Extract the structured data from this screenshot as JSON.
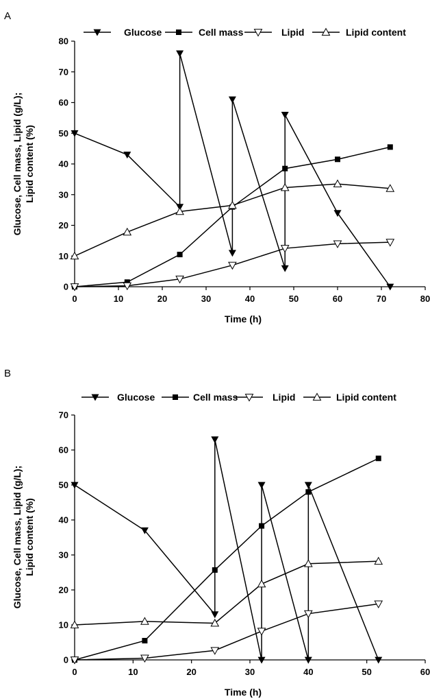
{
  "chart_data": [
    {
      "panel": "A",
      "type": "line",
      "xlabel": "Time (h)",
      "ylabel": [
        "Glucose, Cell mass, Lipid (g/L);",
        "Lipid content (%)"
      ],
      "xlim": [
        0,
        80
      ],
      "ylim": [
        0,
        80
      ],
      "xticks": [
        0,
        10,
        20,
        30,
        40,
        50,
        60,
        70,
        80
      ],
      "yticks": [
        0,
        10,
        20,
        30,
        40,
        50,
        60,
        70,
        80
      ],
      "grid": false,
      "legend_position": "top",
      "series": [
        {
          "name": "Glucose",
          "marker": "triangle-down-filled",
          "points": [
            [
              0,
              50
            ],
            [
              12,
              43
            ],
            [
              24,
              26
            ],
            [
              24,
              76
            ],
            [
              36,
              11
            ],
            [
              36,
              61
            ],
            [
              48,
              6
            ],
            [
              48,
              56
            ],
            [
              60,
              24
            ],
            [
              72,
              0
            ]
          ]
        },
        {
          "name": "Cell mass",
          "marker": "square-filled",
          "points": [
            [
              0,
              0
            ],
            [
              12,
              1.5
            ],
            [
              24,
              10.5
            ],
            [
              36,
              26
            ],
            [
              48,
              38.5
            ],
            [
              60,
              41.5
            ],
            [
              72,
              45.5
            ]
          ]
        },
        {
          "name": "Lipid",
          "marker": "triangle-down-open",
          "points": [
            [
              0,
              0
            ],
            [
              12,
              0.3
            ],
            [
              24,
              2.5
            ],
            [
              36,
              7
            ],
            [
              48,
              12.5
            ],
            [
              60,
              14
            ],
            [
              72,
              14.5
            ]
          ]
        },
        {
          "name": "Lipid content",
          "marker": "triangle-up-open",
          "points": [
            [
              0,
              10
            ],
            [
              12,
              17.8
            ],
            [
              24,
              24.5
            ],
            [
              36,
              26.5
            ],
            [
              48,
              32.3
            ],
            [
              60,
              33.5
            ],
            [
              72,
              32
            ]
          ]
        }
      ]
    },
    {
      "panel": "B",
      "type": "line",
      "xlabel": "Time (h)",
      "ylabel": [
        "Glucose, Cell mass, Lipid (g/L);",
        "Lipid content (%)"
      ],
      "xlim": [
        0,
        60
      ],
      "ylim": [
        0,
        70
      ],
      "xticks": [
        0,
        10,
        20,
        30,
        40,
        50,
        60
      ],
      "yticks": [
        0,
        10,
        20,
        30,
        40,
        50,
        60,
        70
      ],
      "grid": false,
      "legend_position": "top",
      "series": [
        {
          "name": "Glucose",
          "marker": "triangle-down-filled",
          "points": [
            [
              0,
              50
            ],
            [
              12,
              37
            ],
            [
              24,
              13
            ],
            [
              24,
              63
            ],
            [
              32,
              0
            ],
            [
              32,
              50
            ],
            [
              40,
              0
            ],
            [
              40,
              50
            ],
            [
              52,
              0
            ]
          ]
        },
        {
          "name": "Cell mass",
          "marker": "square-filled",
          "points": [
            [
              0,
              0
            ],
            [
              12,
              5.5
            ],
            [
              24,
              25.7
            ],
            [
              32,
              38.3
            ],
            [
              40,
              48
            ],
            [
              52,
              57.6
            ]
          ]
        },
        {
          "name": "Lipid",
          "marker": "triangle-down-open",
          "points": [
            [
              0,
              0
            ],
            [
              12,
              0.5
            ],
            [
              24,
              2.7
            ],
            [
              32,
              8.2
            ],
            [
              40,
              13.2
            ],
            [
              52,
              16
            ]
          ]
        },
        {
          "name": "Lipid content",
          "marker": "triangle-up-open",
          "points": [
            [
              0,
              10
            ],
            [
              12,
              11
            ],
            [
              24,
              10.5
            ],
            [
              32,
              21.7
            ],
            [
              40,
              27.5
            ],
            [
              52,
              28.2
            ]
          ]
        }
      ]
    }
  ]
}
